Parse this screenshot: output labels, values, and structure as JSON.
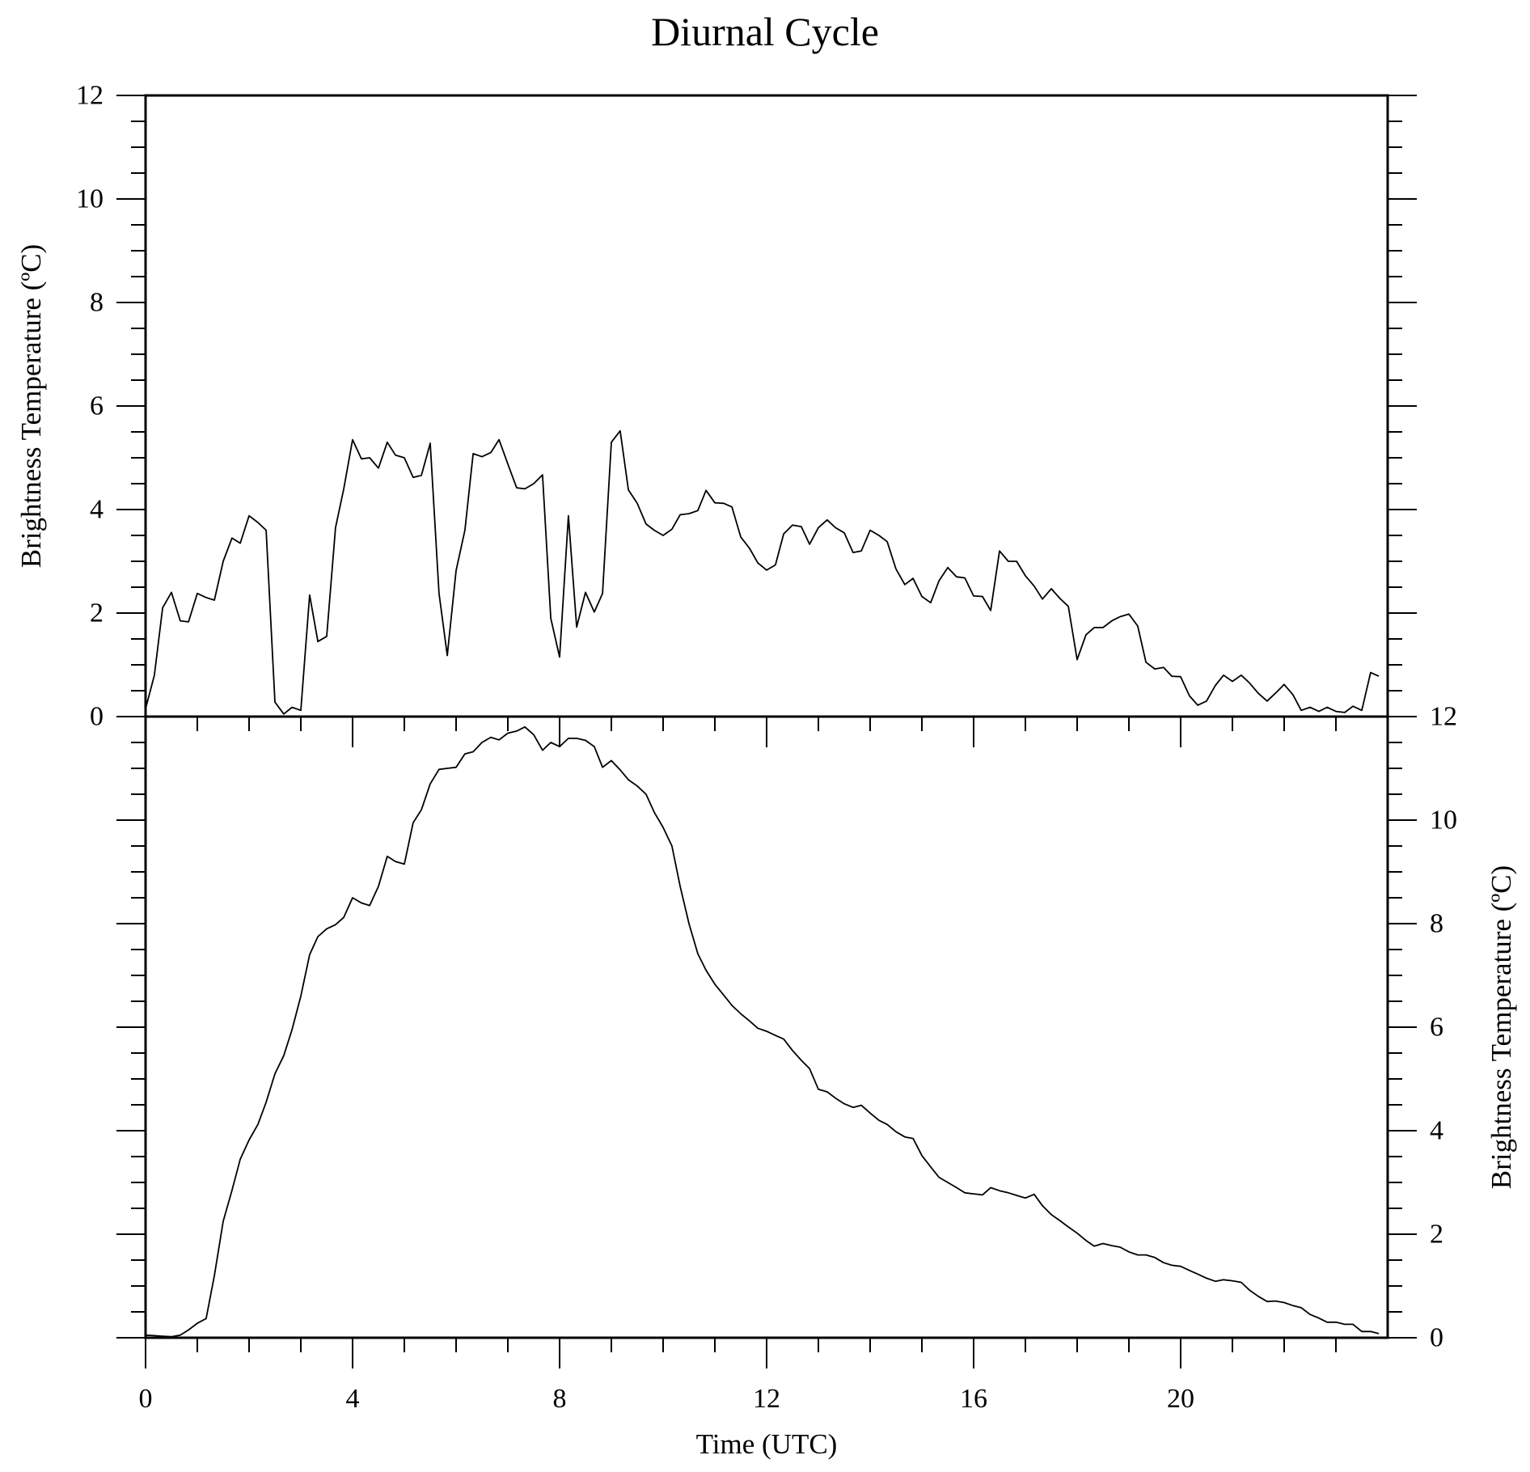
{
  "chart_data": [
    {
      "type": "line",
      "title": "Diurnal Cycle",
      "xlabel": "",
      "ylabel": "Brightness Temperature (ºC)",
      "xlim": [
        0,
        24
      ],
      "ylim": [
        0,
        12
      ],
      "y_axis_side": "left",
      "x_ticks": [
        "",
        "",
        "",
        "",
        "",
        ""
      ],
      "y_ticks": [
        "0",
        "2",
        "4",
        "6",
        "8",
        "10",
        "12"
      ],
      "series": [
        {
          "x": [
            0.0,
            0.17,
            0.33,
            0.5,
            0.67,
            0.83,
            1.0,
            1.17,
            1.33,
            1.5,
            1.67,
            1.83,
            2.0,
            2.17,
            2.33,
            2.5,
            2.67,
            2.83,
            3.0,
            3.17,
            3.33,
            3.5,
            3.67,
            3.83,
            4.0,
            4.17,
            4.33,
            4.5,
            4.67,
            4.83,
            5.0,
            5.17,
            5.33,
            5.5,
            5.67,
            5.83,
            6.0,
            6.17,
            6.33,
            6.5,
            6.67,
            6.83,
            7.0,
            7.17,
            7.33,
            7.5,
            7.67,
            7.83,
            8.0,
            8.17,
            8.33,
            8.5,
            8.67,
            8.83,
            9.0,
            9.17,
            9.33,
            9.5,
            9.67,
            9.83,
            10.0,
            10.17,
            10.33,
            10.5,
            10.67,
            10.83,
            11.0,
            11.17,
            11.33,
            11.5,
            11.67,
            11.83,
            12.0,
            12.17,
            12.33,
            12.5,
            12.67,
            12.83,
            13.0,
            13.17,
            13.33,
            13.5,
            13.67,
            13.83,
            14.0,
            14.17,
            14.33,
            14.5,
            14.67,
            14.83,
            15.0,
            15.17,
            15.33,
            15.5,
            15.67,
            15.83,
            16.0,
            16.17,
            16.33,
            16.5,
            16.67,
            16.83,
            17.0,
            17.17,
            17.33,
            17.5,
            17.67,
            17.83,
            18.0,
            18.17,
            18.33,
            18.5,
            18.67,
            18.83,
            19.0,
            19.17,
            19.33,
            19.5,
            19.67,
            19.83,
            20.0,
            20.17,
            20.33,
            20.5,
            20.67,
            20.83,
            21.0,
            21.17,
            21.33,
            21.5,
            21.67,
            21.83,
            22.0,
            22.17,
            22.33,
            22.5,
            22.67,
            22.83,
            23.0,
            23.17,
            23.33,
            23.5,
            23.67,
            23.83
          ],
          "values": [
            0.15,
            0.8,
            2.1,
            2.4,
            1.85,
            1.83,
            2.38,
            2.3,
            2.25,
            3.0,
            3.45,
            3.35,
            3.88,
            3.75,
            3.6,
            0.28,
            0.05,
            0.18,
            0.12,
            2.35,
            1.45,
            1.55,
            3.65,
            4.4,
            5.35,
            4.98,
            5.0,
            4.8,
            5.3,
            5.05,
            5.0,
            4.62,
            4.66,
            5.28,
            2.38,
            1.18,
            2.82,
            3.6,
            5.08,
            5.02,
            5.1,
            5.35,
            4.88,
            4.42,
            4.4,
            4.5,
            4.67,
            1.9,
            1.15,
            3.88,
            1.73,
            2.4,
            2.02,
            2.38,
            5.3,
            5.52,
            4.38,
            4.12,
            3.72,
            3.6,
            3.5,
            3.62,
            3.9,
            3.92,
            3.98,
            4.37,
            4.13,
            4.12,
            4.05,
            3.47,
            3.25,
            2.97,
            2.83,
            2.93,
            3.53,
            3.7,
            3.67,
            3.33,
            3.65,
            3.8,
            3.65,
            3.55,
            3.17,
            3.2,
            3.6,
            3.5,
            3.38,
            2.85,
            2.55,
            2.67,
            2.32,
            2.2,
            2.62,
            2.88,
            2.7,
            2.68,
            2.33,
            2.32,
            2.05,
            3.2,
            3.0,
            3.0,
            2.72,
            2.52,
            2.27,
            2.47,
            2.28,
            2.13,
            1.1,
            1.58,
            1.72,
            1.72,
            1.85,
            1.93,
            1.98,
            1.75,
            1.05,
            0.92,
            0.95,
            0.78,
            0.77,
            0.4,
            0.22,
            0.3,
            0.6,
            0.8,
            0.68,
            0.8,
            0.65,
            0.45,
            0.3,
            0.45,
            0.62,
            0.42,
            0.12,
            0.18,
            0.1,
            0.18,
            0.1,
            0.08,
            0.2,
            0.12,
            0.85,
            0.78
          ]
        }
      ]
    },
    {
      "type": "line",
      "title": "",
      "xlabel": "Time (UTC)",
      "ylabel": "Brightness Temperature (ºC)",
      "xlim": [
        0,
        24
      ],
      "ylim": [
        0,
        12
      ],
      "y_axis_side": "right",
      "x_ticks": [
        "0",
        "4",
        "8",
        "12",
        "16",
        "20"
      ],
      "y_ticks": [
        "0",
        "2",
        "4",
        "6",
        "8",
        "10",
        "12"
      ],
      "series": [
        {
          "x": [
            0.0,
            0.17,
            0.33,
            0.5,
            0.67,
            0.83,
            1.0,
            1.17,
            1.33,
            1.5,
            1.67,
            1.83,
            2.0,
            2.17,
            2.33,
            2.5,
            2.67,
            2.83,
            3.0,
            3.17,
            3.33,
            3.5,
            3.67,
            3.83,
            4.0,
            4.17,
            4.33,
            4.5,
            4.67,
            4.83,
            5.0,
            5.17,
            5.33,
            5.5,
            5.67,
            5.83,
            6.0,
            6.17,
            6.33,
            6.5,
            6.67,
            6.83,
            7.0,
            7.17,
            7.33,
            7.5,
            7.67,
            7.83,
            8.0,
            8.17,
            8.33,
            8.5,
            8.67,
            8.83,
            9.0,
            9.17,
            9.33,
            9.5,
            9.67,
            9.83,
            10.0,
            10.17,
            10.33,
            10.5,
            10.67,
            10.83,
            11.0,
            11.17,
            11.33,
            11.5,
            11.67,
            11.83,
            12.0,
            12.17,
            12.33,
            12.5,
            12.67,
            12.83,
            13.0,
            13.17,
            13.33,
            13.5,
            13.67,
            13.83,
            14.0,
            14.17,
            14.33,
            14.5,
            14.67,
            14.83,
            15.0,
            15.17,
            15.33,
            15.5,
            15.67,
            15.83,
            16.0,
            16.17,
            16.33,
            16.5,
            16.67,
            16.83,
            17.0,
            17.17,
            17.33,
            17.5,
            17.67,
            17.83,
            18.0,
            18.17,
            18.33,
            18.5,
            18.67,
            18.83,
            19.0,
            19.17,
            19.33,
            19.5,
            19.67,
            19.83,
            20.0,
            20.17,
            20.33,
            20.5,
            20.67,
            20.83,
            21.0,
            21.17,
            21.33,
            21.5,
            21.67,
            21.83,
            22.0,
            22.17,
            22.33,
            22.5,
            22.67,
            22.83,
            23.0,
            23.17,
            23.33,
            23.5,
            23.67,
            23.83
          ],
          "values": [
            0.05,
            0.04,
            0.03,
            0.02,
            0.05,
            0.15,
            0.28,
            0.37,
            1.2,
            2.25,
            2.85,
            3.45,
            3.82,
            4.12,
            4.55,
            5.1,
            5.45,
            5.95,
            6.6,
            7.4,
            7.75,
            7.9,
            7.98,
            8.12,
            8.5,
            8.4,
            8.35,
            8.72,
            9.3,
            9.2,
            9.15,
            9.95,
            10.2,
            10.7,
            10.98,
            11.0,
            11.02,
            11.28,
            11.32,
            11.5,
            11.6,
            11.55,
            11.68,
            11.72,
            11.8,
            11.65,
            11.35,
            11.5,
            11.42,
            11.58,
            11.58,
            11.54,
            11.42,
            11.02,
            11.15,
            10.97,
            10.78,
            10.66,
            10.5,
            10.15,
            9.86,
            9.5,
            8.72,
            8.0,
            7.42,
            7.1,
            6.83,
            6.62,
            6.42,
            6.26,
            6.12,
            5.98,
            5.92,
            5.84,
            5.77,
            5.55,
            5.36,
            5.2,
            4.8,
            4.75,
            4.63,
            4.52,
            4.45,
            4.49,
            4.34,
            4.2,
            4.12,
            3.98,
            3.88,
            3.85,
            3.52,
            3.3,
            3.1,
            3.0,
            2.9,
            2.8,
            2.78,
            2.76,
            2.9,
            2.84,
            2.8,
            2.75,
            2.7,
            2.77,
            2.55,
            2.38,
            2.26,
            2.14,
            2.02,
            1.88,
            1.77,
            1.82,
            1.78,
            1.75,
            1.66,
            1.6,
            1.6,
            1.55,
            1.45,
            1.4,
            1.38,
            1.3,
            1.23,
            1.15,
            1.09,
            1.12,
            1.1,
            1.07,
            0.92,
            0.8,
            0.7,
            0.71,
            0.68,
            0.62,
            0.58,
            0.45,
            0.38,
            0.3,
            0.3,
            0.26,
            0.26,
            0.12,
            0.12,
            0.08
          ]
        }
      ]
    }
  ]
}
